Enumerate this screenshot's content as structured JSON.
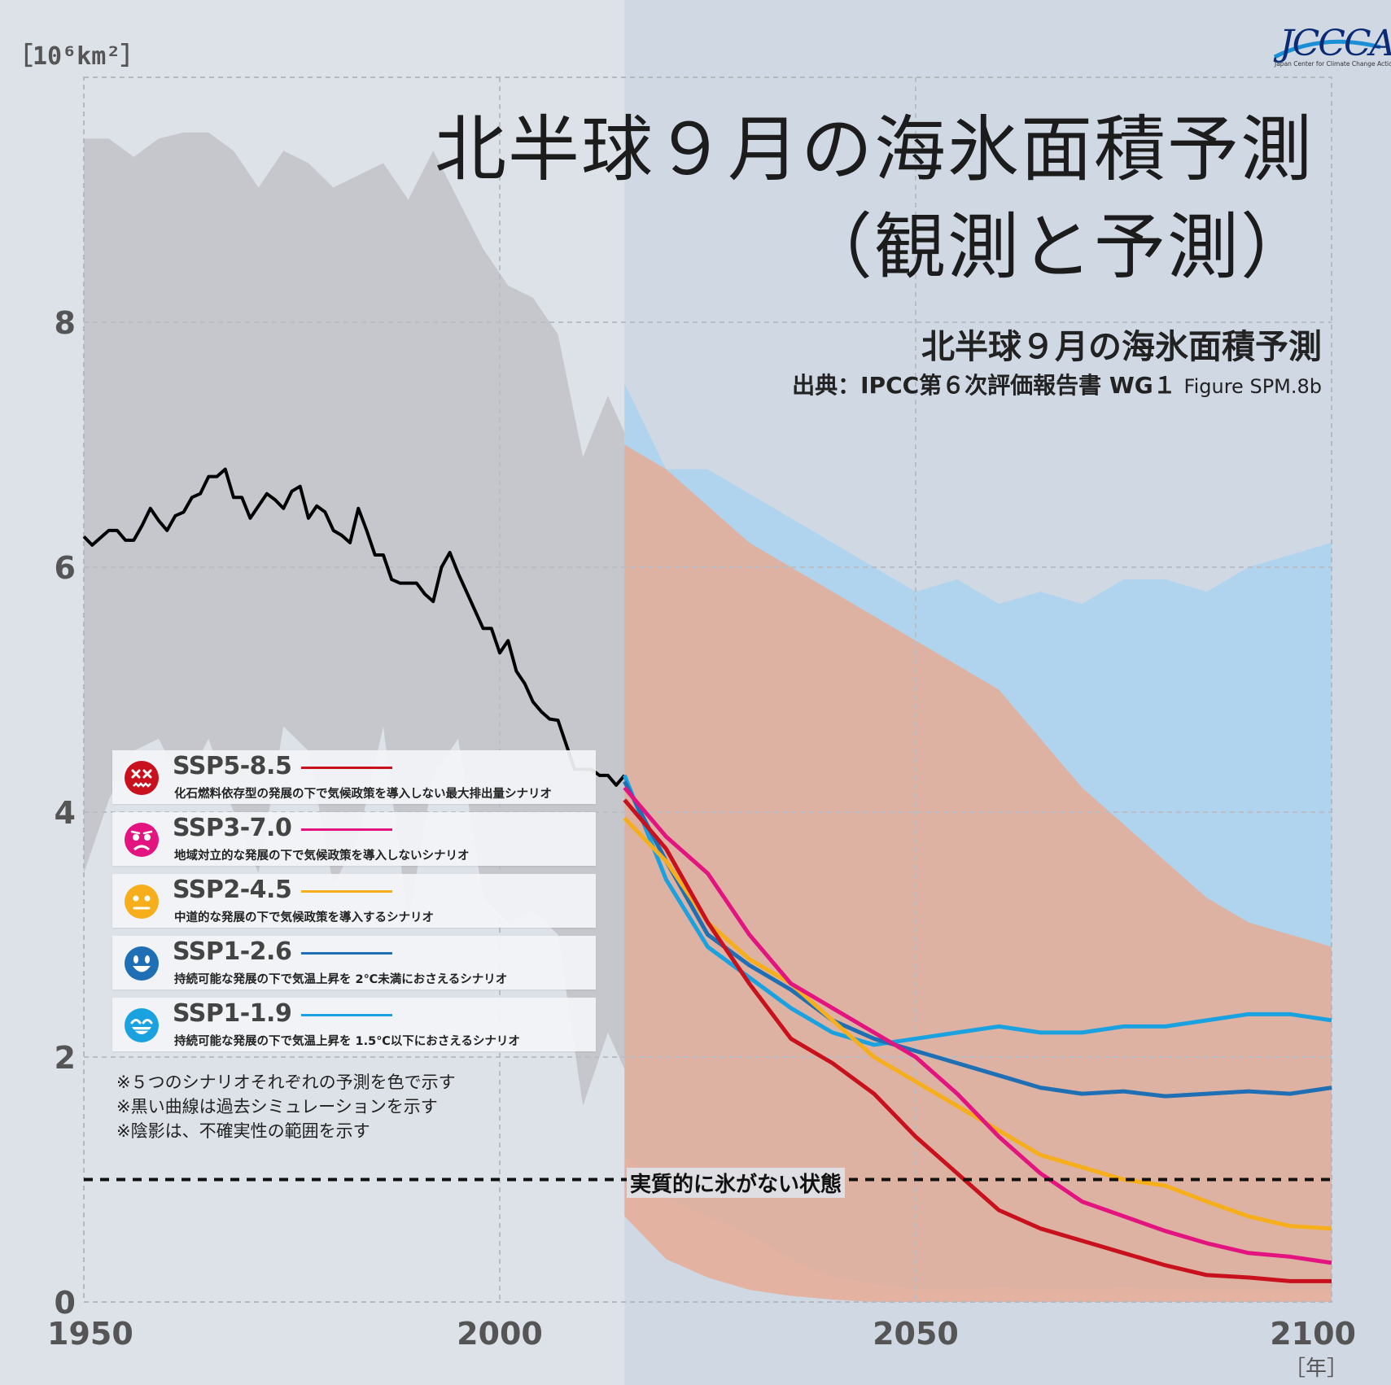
{
  "title": {
    "line1": "北半球９月の海氷面積予測",
    "line2": "（観測と予測）",
    "subtitle": "北半球９月の海氷面積予測",
    "source": "出典：IPCC第６次評価報告書 WG１",
    "source_fig": "Figure SPM.8b"
  },
  "logo": {
    "text": "JCCCA",
    "sub": "Japan Center for Climate Change Actions"
  },
  "axis": {
    "y_unit": "［10⁶km²］",
    "x_unit": "［年］",
    "y_ticks": [
      "0",
      "2",
      "4",
      "6",
      "8"
    ],
    "x_ticks": [
      "1950",
      "2000",
      "2050",
      "2100"
    ]
  },
  "legend": [
    {
      "name": "SSP5-8.5",
      "desc": "化石燃料依存型の発展の下で気候政策を導入しない最大排出量シナリオ",
      "color": "#c8111c",
      "face": "face-dizzy-icon"
    },
    {
      "name": "SSP3-7.0",
      "desc": "地域対立的な発展の下で気候政策を導入しないシナリオ",
      "color": "#e3137f",
      "face": "face-worried-icon"
    },
    {
      "name": "SSP2-4.5",
      "desc": "中道的な発展の下で気候政策を導入するシナリオ",
      "color": "#f6ae1b",
      "face": "face-neutral-icon"
    },
    {
      "name": "SSP1-2.6",
      "desc": "持続可能な発展の下で気温上昇を 2℃未満におさえるシナリオ",
      "color": "#1f6fb5",
      "face": "face-smile-icon"
    },
    {
      "name": "SSP1-1.9",
      "desc": "持続可能な発展の下で気温上昇を 1.5℃以下におさえるシナリオ",
      "color": "#1aa2e0",
      "face": "face-grin-icon"
    }
  ],
  "notes": [
    "※５つのシナリオそれぞれの予測を色で示す",
    "※黒い曲線は過去シミュレーションを示す",
    "※陰影は、不確実性の範囲を示す"
  ],
  "threshold": {
    "value": 1,
    "label": "実質的に氷がない状態"
  },
  "chart_data": {
    "type": "line",
    "xlim": [
      1950,
      2100
    ],
    "ylim": [
      0,
      10
    ],
    "grid": true,
    "historical": {
      "color": "#000000",
      "x": [
        1950,
        1951,
        1952,
        1953,
        1954,
        1955,
        1956,
        1957,
        1958,
        1959,
        1960,
        1961,
        1962,
        1963,
        1964,
        1965,
        1966,
        1967,
        1968,
        1969,
        1970,
        1971,
        1972,
        1973,
        1974,
        1975,
        1976,
        1977,
        1978,
        1979,
        1980,
        1981,
        1982,
        1983,
        1984,
        1985,
        1986,
        1987,
        1988,
        1989,
        1990,
        1991,
        1992,
        1993,
        1994,
        1995,
        1996,
        1997,
        1998,
        1999,
        2000,
        2001,
        2002,
        2003,
        2004,
        2005,
        2006,
        2007,
        2008,
        2009,
        2010,
        2011,
        2012,
        2013,
        2014,
        2015
      ],
      "y": [
        6.25,
        6.18,
        6.24,
        6.3,
        6.3,
        6.22,
        6.22,
        6.34,
        6.48,
        6.38,
        6.3,
        6.42,
        6.45,
        6.57,
        6.6,
        6.74,
        6.74,
        6.8,
        6.57,
        6.57,
        6.4,
        6.5,
        6.6,
        6.55,
        6.48,
        6.62,
        6.66,
        6.4,
        6.5,
        6.45,
        6.3,
        6.26,
        6.2,
        6.48,
        6.3,
        6.1,
        6.1,
        5.9,
        5.87,
        5.87,
        5.87,
        5.78,
        5.72,
        6.0,
        6.12,
        5.95,
        5.8,
        5.65,
        5.5,
        5.5,
        5.3,
        5.4,
        5.15,
        5.05,
        4.9,
        4.82,
        4.76,
        4.75,
        4.55,
        4.35,
        4.35,
        4.35,
        4.3,
        4.3,
        4.22,
        4.3
      ]
    },
    "historical_band": {
      "x": [
        1950,
        1953,
        1956,
        1959,
        1962,
        1965,
        1968,
        1971,
        1974,
        1977,
        1980,
        1983,
        1986,
        1989,
        1992,
        1995,
        1998,
        2001,
        2004,
        2007,
        2010,
        2013,
        2015
      ],
      "upper": [
        9.5,
        9.5,
        9.35,
        9.5,
        9.55,
        9.55,
        9.4,
        9.1,
        9.4,
        9.3,
        9.1,
        9.2,
        9.3,
        9.0,
        9.4,
        9.0,
        8.6,
        8.3,
        8.2,
        7.9,
        6.9,
        7.4,
        7.1
      ],
      "lower": [
        3.5,
        4.1,
        4.5,
        4.6,
        4.2,
        4.6,
        4.0,
        3.5,
        4.7,
        4.5,
        3.4,
        3.8,
        4.7,
        3.1,
        4.3,
        4.6,
        3.3,
        3.1,
        3.2,
        3.0,
        1.6,
        2.2,
        1.9
      ]
    },
    "scenario_years": [
      2015,
      2020,
      2025,
      2030,
      2035,
      2040,
      2045,
      2050,
      2055,
      2060,
      2065,
      2070,
      2075,
      2080,
      2085,
      2090,
      2095,
      2100
    ],
    "series": [
      {
        "name": "SSP5-8.5",
        "color": "#c8111c",
        "values": [
          4.1,
          3.7,
          3.1,
          2.6,
          2.15,
          1.95,
          1.7,
          1.35,
          1.05,
          0.75,
          0.6,
          0.5,
          0.4,
          0.3,
          0.22,
          0.2,
          0.17,
          0.17
        ]
      },
      {
        "name": "SSP3-7.0",
        "color": "#e3137f",
        "values": [
          4.2,
          3.8,
          3.5,
          3.0,
          2.6,
          2.4,
          2.2,
          2.0,
          1.7,
          1.35,
          1.05,
          0.82,
          0.7,
          0.58,
          0.48,
          0.4,
          0.37,
          0.32
        ]
      },
      {
        "name": "SSP2-4.5",
        "color": "#f6ae1b",
        "values": [
          3.95,
          3.6,
          3.1,
          2.8,
          2.6,
          2.3,
          2.0,
          1.8,
          1.6,
          1.4,
          1.2,
          1.1,
          1.0,
          0.95,
          0.82,
          0.7,
          0.62,
          0.6
        ]
      },
      {
        "name": "SSP1-2.6",
        "color": "#1f6fb5",
        "values": [
          4.25,
          3.6,
          3.0,
          2.75,
          2.55,
          2.3,
          2.15,
          2.05,
          1.95,
          1.85,
          1.75,
          1.7,
          1.72,
          1.68,
          1.7,
          1.72,
          1.7,
          1.75
        ]
      },
      {
        "name": "SSP1-1.9",
        "color": "#1aa2e0",
        "values": [
          4.3,
          3.45,
          2.9,
          2.65,
          2.4,
          2.2,
          2.1,
          2.15,
          2.2,
          2.25,
          2.2,
          2.2,
          2.25,
          2.25,
          2.3,
          2.35,
          2.35,
          2.3
        ]
      }
    ],
    "bands": [
      {
        "name": "SSP1-1.9",
        "color": "#a7d3f0",
        "upper": [
          7.5,
          6.8,
          6.8,
          6.6,
          6.4,
          6.2,
          6.0,
          5.8,
          5.9,
          5.7,
          5.8,
          5.7,
          5.9,
          5.9,
          5.8,
          6.0,
          6.1,
          6.2
        ],
        "lower": [
          1.2,
          0.85,
          0.7,
          0.55,
          0.35,
          0.2,
          0.15,
          0.1,
          0.1,
          0.12,
          0.1,
          0.1,
          0.12,
          0.1,
          0.1,
          0.1,
          0.1,
          0.1
        ]
      },
      {
        "name": "SSP5-8.5",
        "color": "#e8a98f",
        "upper": [
          7.0,
          6.8,
          6.5,
          6.2,
          6.0,
          5.8,
          5.6,
          5.4,
          5.2,
          5.0,
          4.6,
          4.2,
          3.9,
          3.6,
          3.3,
          3.1,
          3.0,
          2.9
        ],
        "lower": [
          0.7,
          0.35,
          0.2,
          0.1,
          0.05,
          0.02,
          0.0,
          0.0,
          0.0,
          0.0,
          0.0,
          0.0,
          0.0,
          0.0,
          0.0,
          0.0,
          0.0,
          0.0
        ]
      }
    ]
  }
}
